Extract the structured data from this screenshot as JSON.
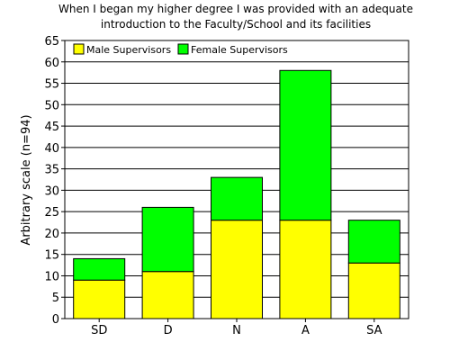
{
  "chart_data": {
    "type": "bar",
    "stacked": true,
    "title_lines": [
      "When I began my higher degree I was provided with an adequate",
      "introduction to the Faculty/School and its facilities"
    ],
    "xlabel": "",
    "ylabel": "Arbitrary scale (n=94)",
    "categories": [
      "SD",
      "D",
      "N",
      "A",
      "SA"
    ],
    "ylim": [
      0,
      65
    ],
    "yticks": [
      0,
      5,
      10,
      15,
      20,
      25,
      30,
      35,
      40,
      45,
      50,
      55,
      60,
      65
    ],
    "grid": true,
    "legend": "top-left",
    "series": [
      {
        "name": "Male Supervisors",
        "color": "#ffff00",
        "values": [
          9,
          11,
          23,
          23,
          13
        ]
      },
      {
        "name": "Female Supervisors",
        "color": "#00ff00",
        "values": [
          5,
          15,
          10,
          35,
          10
        ]
      }
    ]
  }
}
